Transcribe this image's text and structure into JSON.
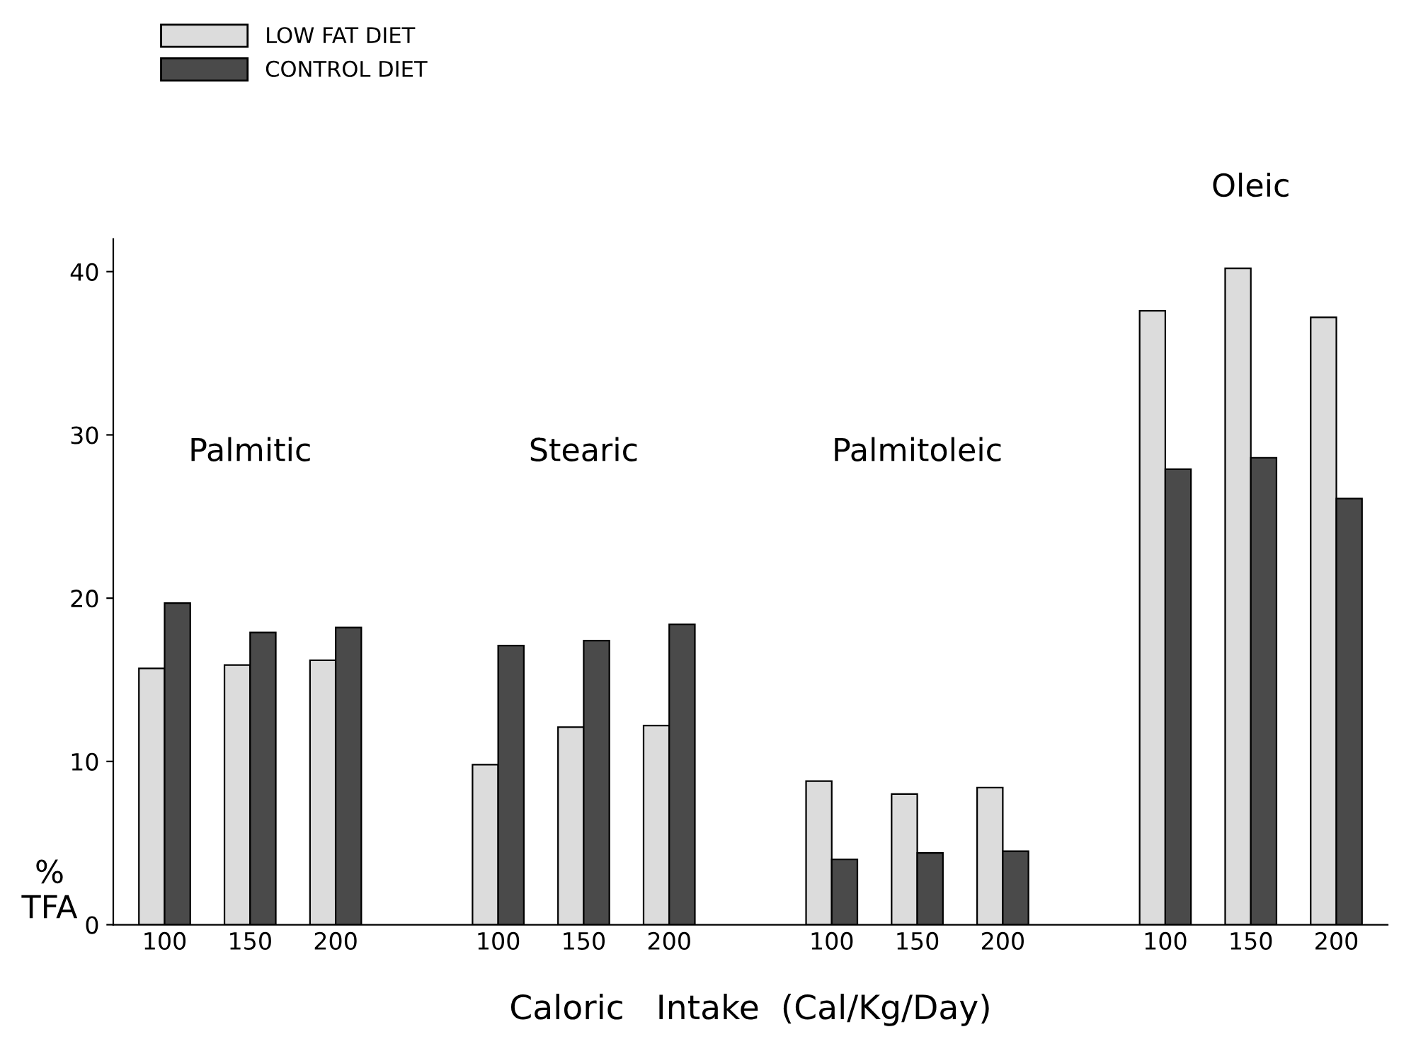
{
  "chart_data": {
    "type": "bar",
    "xlabel": "Caloric   Intake  (Cal/Kg/Day)",
    "ylabel": "%\nTFA",
    "categories": [
      "100",
      "150",
      "200",
      "100",
      "150",
      "200",
      "100",
      "150",
      "200",
      "100",
      "150",
      "200"
    ],
    "series": [
      {
        "name": "LOW FAT DIET",
        "color": "#dcdcdc",
        "values": [
          15.7,
          15.9,
          16.2,
          9.8,
          12.1,
          12.2,
          8.8,
          8.0,
          8.4,
          37.6,
          40.2,
          37.2
        ]
      },
      {
        "name": "CONTROL DIET",
        "color": "#4a4a4a",
        "values": [
          19.7,
          17.9,
          18.2,
          17.1,
          17.4,
          18.4,
          4.0,
          4.4,
          4.5,
          27.9,
          28.6,
          26.1
        ]
      }
    ],
    "annotations": [
      "Palmitic",
      "Stearic",
      "Palmitoleic",
      "Oleic"
    ],
    "ylim": [
      0,
      42
    ],
    "yticks": [
      0,
      10,
      20,
      30,
      40
    ],
    "grid": false,
    "legend": "top left"
  }
}
